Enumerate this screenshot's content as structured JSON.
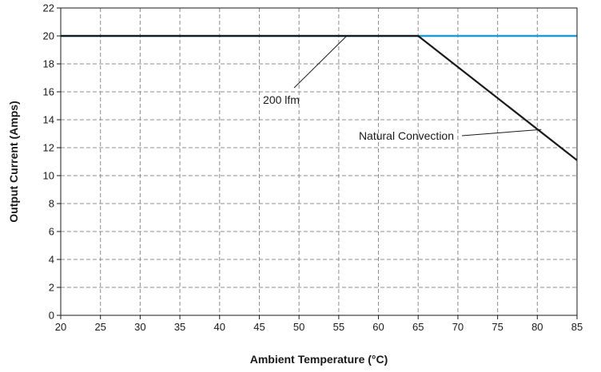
{
  "chart_data": {
    "type": "line",
    "title": "",
    "xlabel": "Ambient Temperature (°C)",
    "ylabel": "Output Current (Amps)",
    "xlim": [
      20,
      85
    ],
    "ylim": [
      0,
      22
    ],
    "xticks": [
      20,
      25,
      30,
      35,
      40,
      45,
      50,
      55,
      60,
      65,
      70,
      75,
      80,
      85
    ],
    "yticks": [
      0,
      2,
      4,
      6,
      8,
      10,
      12,
      14,
      16,
      18,
      20,
      22
    ],
    "grid": true,
    "series": [
      {
        "name": "200 lfm",
        "x": [
          20,
          85
        ],
        "y": [
          20,
          20
        ],
        "color": "#1e9bd7"
      },
      {
        "name": "Natural Convection",
        "x": [
          20,
          65,
          85
        ],
        "y": [
          20,
          20,
          11.1
        ],
        "color": "#1a1a1a"
      }
    ],
    "annotations": [
      {
        "text": "200 lfm",
        "series": 0,
        "point": [
          56,
          20
        ]
      },
      {
        "text": "Natural Convection",
        "series": 1,
        "point": [
          80.5,
          13.3
        ]
      }
    ]
  }
}
